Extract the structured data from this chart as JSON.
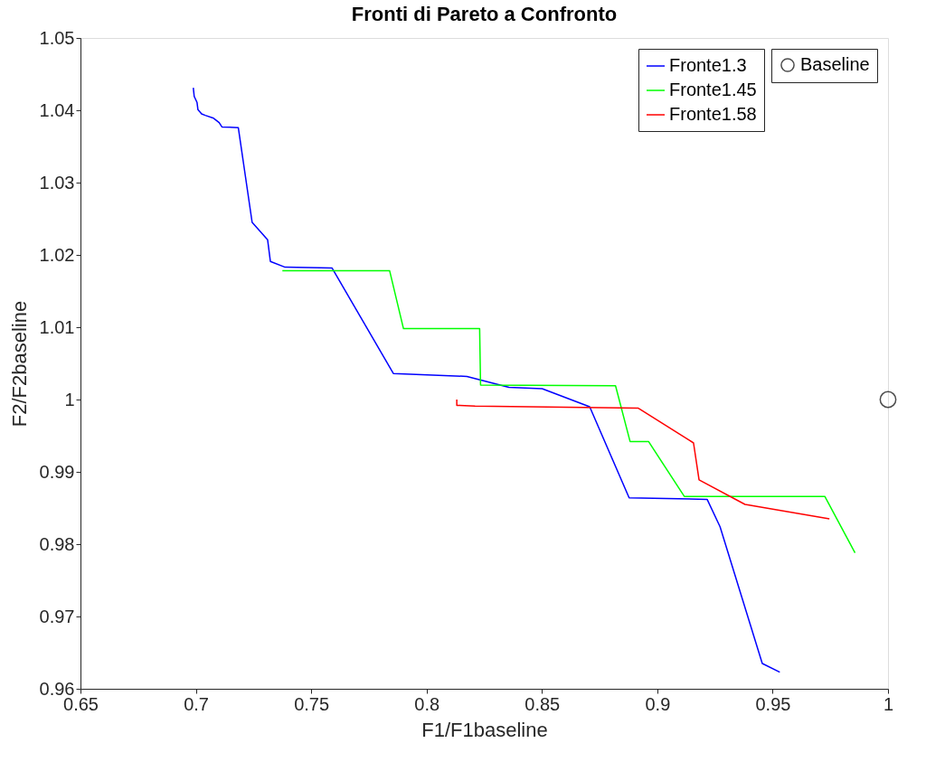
{
  "chart_data": {
    "type": "line",
    "title": "Fronti di Pareto a Confronto",
    "xlabel": "F1/F1baseline",
    "ylabel": "F2/F2baseline",
    "xlim": [
      0.65,
      1
    ],
    "xticks": [
      0.65,
      0.7,
      0.75,
      0.8,
      0.85,
      0.9,
      0.95,
      1
    ],
    "ylim": [
      0.96,
      1.05
    ],
    "yticks": [
      0.96,
      0.97,
      0.98,
      0.99,
      1,
      1.01,
      1.02,
      1.03,
      1.04,
      1.05
    ],
    "grid": false,
    "legend": "top right",
    "series": [
      {
        "name": "Fronte1.3",
        "color": "#0000ff",
        "x": [
          0.6989,
          0.6993,
          0.7005,
          0.7009,
          0.7025,
          0.7041,
          0.7077,
          0.7101,
          0.7113,
          0.7184,
          0.7244,
          0.7311,
          0.7323,
          0.7387,
          0.759,
          0.7856,
          0.8175,
          0.8357,
          0.8501,
          0.8707,
          0.8878,
          0.9216,
          0.9272,
          0.9455,
          0.9531
        ],
        "values": [
          1.0431,
          1.0419,
          1.0411,
          1.0401,
          1.0395,
          1.0393,
          1.0389,
          1.0383,
          1.0377,
          1.0376,
          1.0245,
          1.0221,
          1.0191,
          1.0183,
          1.0182,
          1.0036,
          1.0032,
          1.0017,
          1.0015,
          0.999,
          0.9864,
          0.9862,
          0.9824,
          0.9635,
          0.9623
        ]
      },
      {
        "name": "Fronte1.45",
        "color": "#00ff00",
        "x": [
          0.7375,
          0.784,
          0.79,
          0.823,
          0.8234,
          0.8819,
          0.8882,
          0.8962,
          0.9117,
          0.9726,
          0.9857
        ],
        "values": [
          1.0178,
          1.0178,
          1.0098,
          1.0098,
          1.002,
          1.0019,
          0.9942,
          0.9942,
          0.9866,
          0.9866,
          0.9788
        ]
      },
      {
        "name": "Fronte1.58",
        "color": "#ff0000",
        "x": [
          0.8131,
          0.8131,
          0.821,
          0.8918,
          0.9157,
          0.9181,
          0.938,
          0.9746
        ],
        "values": [
          1.0,
          0.9992,
          0.9991,
          0.9988,
          0.994,
          0.9889,
          0.9855,
          0.9835
        ]
      },
      {
        "type": "scatter",
        "name": "Baseline",
        "color": "#000000",
        "marker": "circle",
        "x": [
          1
        ],
        "values": [
          1
        ]
      }
    ]
  }
}
